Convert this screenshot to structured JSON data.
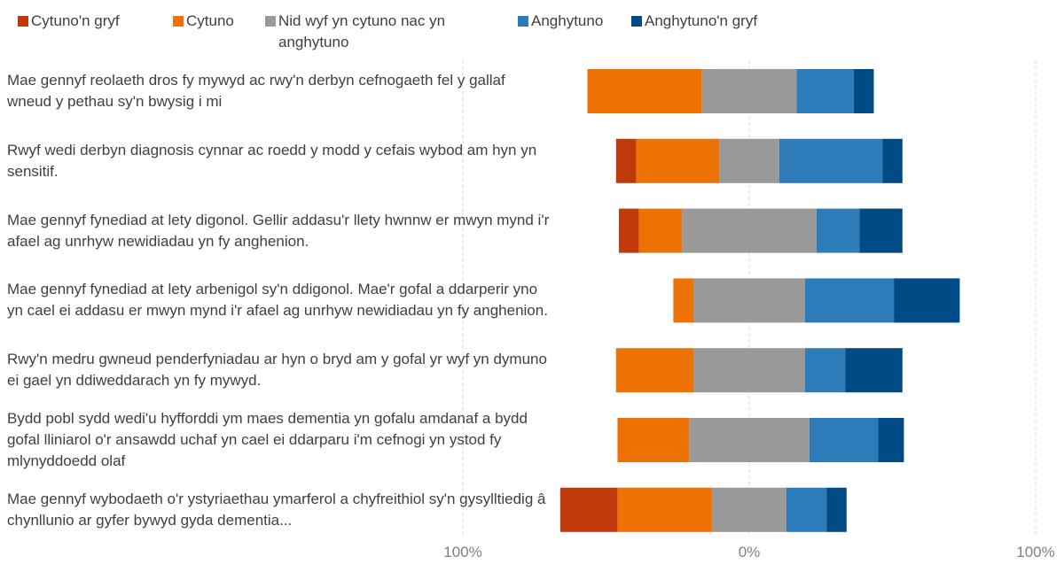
{
  "chart_data": {
    "type": "diverging_bar",
    "categories": [
      "Mae gennyf reolaeth dros fy mywyd ac rwy'n derbyn cefnogaeth fel y gallaf wneud y pethau sy'n bwysig i mi",
      "Rwyf wedi derbyn diagnosis cynnar ac roedd y modd y cefais wybod am hyn yn sensitif.",
      "Mae gennyf fynediad at lety digonol. Gellir addasu'r llety hwnnw er mwyn mynd i'r afael ag unrhyw newidiadau yn fy anghenion.",
      "Mae gennyf fynediad at lety arbenigol sy'n ddigonol. Mae'r gofal a ddarperir yno yn cael ei addasu er mwyn mynd i'r afael ag unrhyw newidiadau yn fy anghenion.",
      "Rwy'n medru gwneud penderfyniadau ar hyn o bryd am y gofal yr wyf yn dymuno ei gael yn ddiweddarach yn fy mywyd.",
      "Bydd pobl sydd wedi'u hyfforddi ym maes dementia yn gofalu amdanaf a bydd gofal lliniarol o'r ansawdd uchaf yn cael ei ddarparu i'm cefnogi yn ystod fy mlynyddoedd olaf",
      "Mae gennyf wybodaeth o'r ystyriaethau ymarferol a chyfreithiol sy'n gysylltiedig â chynllunio ar gyfer bywyd gyda dementia..."
    ],
    "series": [
      {
        "name": "Cytuno'n gryf",
        "color": "#c0390b",
        "values": [
          0,
          7,
          7,
          0,
          0,
          0,
          20
        ]
      },
      {
        "name": "Cytuno",
        "color": "#ee7203",
        "values": [
          40,
          29,
          15,
          7,
          27,
          25,
          33
        ]
      },
      {
        "name": "Nid wyf yn cytuno nac yn anghytuno",
        "color": "#999999",
        "values": [
          33,
          21,
          47,
          39,
          39,
          42,
          26
        ]
      },
      {
        "name": "Anghytuno",
        "color": "#2e7bba",
        "values": [
          20,
          36,
          15,
          31,
          14,
          24,
          14
        ]
      },
      {
        "name": "Anghytuno'n gryf",
        "color": "#004b85",
        "values": [
          7,
          7,
          15,
          23,
          20,
          9,
          7
        ]
      }
    ],
    "xlim": [
      -100,
      100
    ],
    "xticks": [
      {
        "value": -100,
        "label": "100%"
      },
      {
        "value": 0,
        "label": "0%"
      },
      {
        "value": 100,
        "label": "100%"
      }
    ],
    "grid": true
  }
}
